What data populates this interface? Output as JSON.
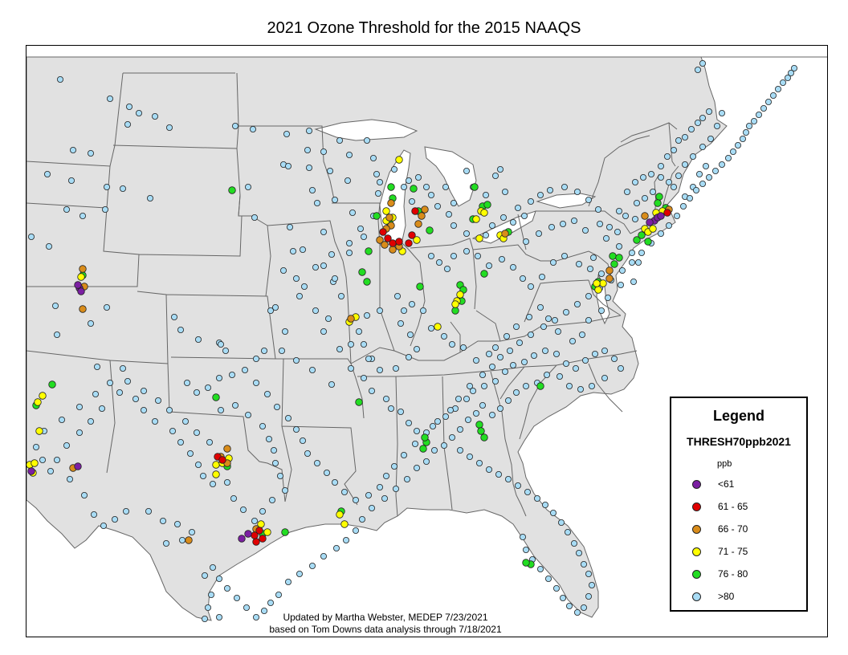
{
  "title": "2021 Ozone Threshold for the 2015 NAAQS",
  "credits": {
    "line1": "Updated by Martha Webster, MEDEP 7/23/2021",
    "line2": "based on Tom Downs data analysis through 7/18/2021"
  },
  "legend": {
    "title": "Legend",
    "field": "THRESH70ppb2021",
    "unit": "ppb",
    "items": [
      {
        "label": "<61",
        "color": "#7b1fa2"
      },
      {
        "label": "61 - 65",
        "color": "#e00000"
      },
      {
        "label": "66 - 70",
        "color": "#d98c1a"
      },
      {
        "label": "71 - 75",
        "color": "#ffff00"
      },
      {
        "label": "76 - 80",
        "color": "#22dd22"
      },
      {
        "label": ">80",
        "color": "#a8dcf5"
      }
    ]
  },
  "colors": {
    "land": "#e1e1e1",
    "border": "#666666",
    "water": "#ffffff"
  }
}
